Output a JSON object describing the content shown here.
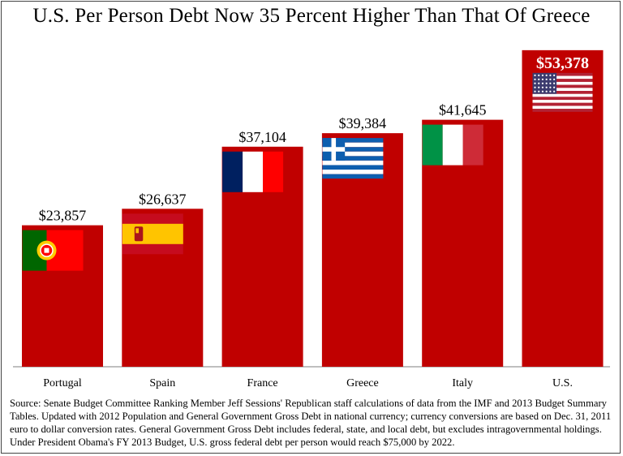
{
  "chart_data": {
    "type": "bar",
    "title": "U.S. Per Person Debt Now 35 Percent Higher Than That Of Greece",
    "categories": [
      "Portugal",
      "Spain",
      "France",
      "Greece",
      "Italy",
      "U.S."
    ],
    "values": [
      23857,
      26637,
      37104,
      39384,
      41645,
      53378
    ],
    "value_labels": [
      "$23,857",
      "$26,637",
      "$37,104",
      "$39,384",
      "$41,645",
      "$53,378"
    ],
    "bar_color": "#c00000",
    "highlight_index": 5,
    "flags": [
      "portugal-flag",
      "spain-flag",
      "france-flag",
      "greece-flag",
      "italy-flag",
      "us-flag"
    ],
    "ylim": [
      0,
      55000
    ],
    "xlabel": "",
    "ylabel": "",
    "grid": false,
    "legend": "none"
  },
  "source_note": "Source: Senate Budget Committee Ranking Member Jeff Sessions' Republican staff calculations of data from the IMF and 2013 Budget Summary Tables. Updated with 2012 Population and General Government Gross Debt in national currency; currency conversions are based on Dec. 31, 2011 euro to dollar conversion rates. General Government Gross Debt includes federal, state, and local debt, but excludes intragovernmental holdings. Under President Obama's FY 2013 Budget, U.S. gross federal debt per person would reach $75,000 by 2022."
}
